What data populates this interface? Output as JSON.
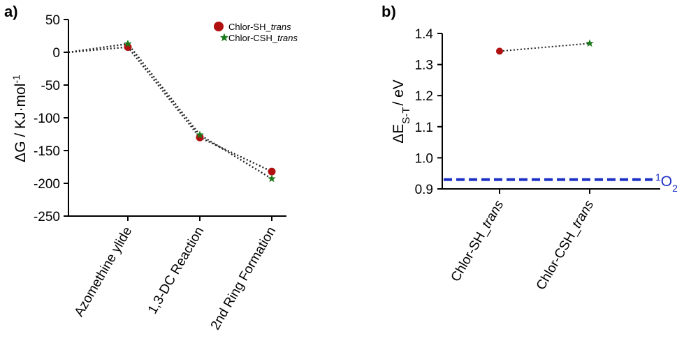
{
  "chart_data": [
    {
      "panel_label": "a)",
      "type": "line",
      "categories": [
        "Azomethine ylide",
        "1,3-DC Reaction",
        "2nd Ring Formation"
      ],
      "ylabel_main": "ΔG / KJ·mol",
      "ylabel_sup": "-1",
      "ylim": [
        -250,
        50
      ],
      "yticks": [
        "50",
        "0",
        "-50",
        "-100",
        "-150",
        "-200",
        "-250"
      ],
      "ytick_values": [
        50,
        0,
        -50,
        -100,
        -150,
        -200,
        -250
      ],
      "start_value": 0,
      "legend_position": "top-right",
      "series": [
        {
          "name_main": "Chlor-SH_",
          "name_italic": "trans",
          "marker": "circle",
          "color": "#b01010",
          "values": [
            8,
            -130,
            -182
          ]
        },
        {
          "name_main": "Chlor-CSH_",
          "name_italic": "trans",
          "marker": "star",
          "color": "#1a7a1a",
          "values": [
            13,
            -126,
            -193
          ]
        }
      ],
      "line_style": "dotted",
      "line_color": "#222222"
    },
    {
      "panel_label": "b)",
      "type": "scatter",
      "categories_main": [
        "Chlor-SH_",
        "Chlor-CSH_"
      ],
      "categories_italic": [
        "trans",
        "trans"
      ],
      "ylabel_main": "ΔE",
      "ylabel_sub": "S-T",
      "ylabel_tail": "/ eV",
      "ylim": [
        0.9,
        1.4
      ],
      "yticks": [
        "1.4",
        "1.3",
        "1.2",
        "1.1",
        "1.0",
        "0.9"
      ],
      "ytick_values": [
        1.4,
        1.3,
        1.2,
        1.1,
        1.0,
        0.9
      ],
      "points": [
        {
          "value": 1.343,
          "marker": "circle",
          "color": "#b01010"
        },
        {
          "value": 1.368,
          "marker": "star",
          "color": "#1a7a1a"
        }
      ],
      "reference_line": {
        "value": 0.93,
        "label_sup": "1",
        "label_main": "O",
        "label_sub": "2",
        "color": "#1c2fc4",
        "style": "dashed"
      }
    }
  ]
}
